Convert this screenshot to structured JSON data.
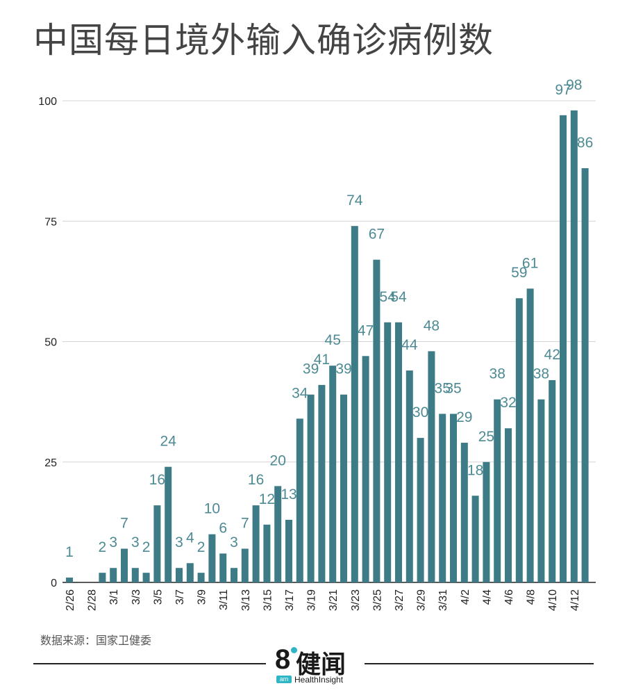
{
  "title": "中国每日境外输入确诊病例数",
  "source": "数据来源：国家卫健委",
  "logo": {
    "number": "8",
    "name": "健闻",
    "badge": "am",
    "subtitle": "HealthInsight"
  },
  "colors": {
    "bar": "#3d7b86",
    "label": "#4d8a93",
    "grid": "#d4d4d4"
  },
  "chart_data": {
    "type": "bar",
    "title": "中国每日境外输入确诊病例数",
    "xlabel": "",
    "ylabel": "",
    "ylim": [
      0,
      100
    ],
    "yticks": [
      0,
      25,
      50,
      75,
      100
    ],
    "grid": true,
    "categories": [
      "2/26",
      "2/27",
      "2/28",
      "2/29",
      "3/1",
      "3/2",
      "3/3",
      "3/4",
      "3/5",
      "3/6",
      "3/7",
      "3/8",
      "3/9",
      "3/10",
      "3/11",
      "3/12",
      "3/13",
      "3/14",
      "3/15",
      "3/16",
      "3/17",
      "3/18",
      "3/19",
      "3/20",
      "3/21",
      "3/22",
      "3/23",
      "3/24",
      "3/25",
      "3/26",
      "3/27",
      "3/28",
      "3/29",
      "3/30",
      "3/31",
      "4/1",
      "4/2",
      "4/3",
      "4/4",
      "4/5",
      "4/6",
      "4/7",
      "4/8",
      "4/9",
      "4/10",
      "4/11",
      "4/12",
      "4/13"
    ],
    "values": [
      1,
      0,
      0,
      2,
      3,
      7,
      3,
      2,
      16,
      24,
      3,
      4,
      2,
      10,
      6,
      3,
      7,
      16,
      12,
      20,
      13,
      34,
      39,
      41,
      45,
      39,
      74,
      47,
      67,
      54,
      54,
      44,
      30,
      48,
      35,
      35,
      29,
      18,
      25,
      38,
      32,
      59,
      61,
      38,
      42,
      97,
      98,
      86
    ],
    "data_labels": [
      "1",
      "",
      "",
      "2",
      "3",
      "7",
      "3",
      "2",
      "16",
      "24",
      "3",
      "4",
      "2",
      "10",
      "6",
      "3",
      "7",
      "16",
      "12",
      "20",
      "13",
      "34",
      "39",
      "41",
      "45",
      "39",
      "74",
      "47",
      "67",
      "54",
      "54",
      "44",
      "30",
      "48",
      "35",
      "35",
      "29",
      "18",
      "25",
      "38",
      "32",
      "59",
      "61",
      "38",
      "42",
      "97",
      "98",
      "86"
    ],
    "tick_labels": [
      "2/26",
      "2/28",
      "3/1",
      "3/3",
      "3/5",
      "3/7",
      "3/9",
      "3/11",
      "3/13",
      "3/15",
      "3/17",
      "3/19",
      "3/21",
      "3/23",
      "3/25",
      "3/27",
      "3/29",
      "3/31",
      "4/2",
      "4/4",
      "4/6",
      "4/8",
      "4/10",
      "4/12"
    ]
  }
}
